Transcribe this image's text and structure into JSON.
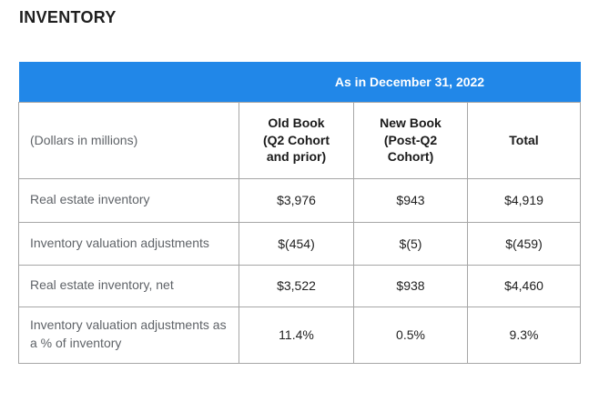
{
  "page": {
    "title": "INVENTORY"
  },
  "table": {
    "band": {
      "title": "As in December 31, 2022"
    },
    "columns": [
      "(Dollars in millions)",
      "Old Book\n(Q2 Cohort\nand prior)",
      "New Book\n(Post-Q2\nCohort)",
      "Total"
    ],
    "rows": [
      {
        "label": "Real estate inventory",
        "values": [
          "$3,976",
          "$943",
          "$4,919"
        ]
      },
      {
        "label": "Inventory valuation adjustments",
        "values": [
          "$(454)",
          "$(5)",
          "$(459)"
        ]
      },
      {
        "label": "Real estate inventory, net",
        "values": [
          "$3,522",
          "$938",
          "$4,460"
        ]
      },
      {
        "label": "Inventory valuation adjustments as a % of inventory",
        "values": [
          "11.4%",
          "0.5%",
          "9.3%"
        ]
      }
    ]
  },
  "colors": {
    "band_blue": "#2187E8",
    "band_text": "#FFFFFF",
    "border_gray": "#A6A6A6",
    "label_gray": "#5F6368",
    "value_black": "#212121",
    "title_black": "#1F1F1F"
  }
}
